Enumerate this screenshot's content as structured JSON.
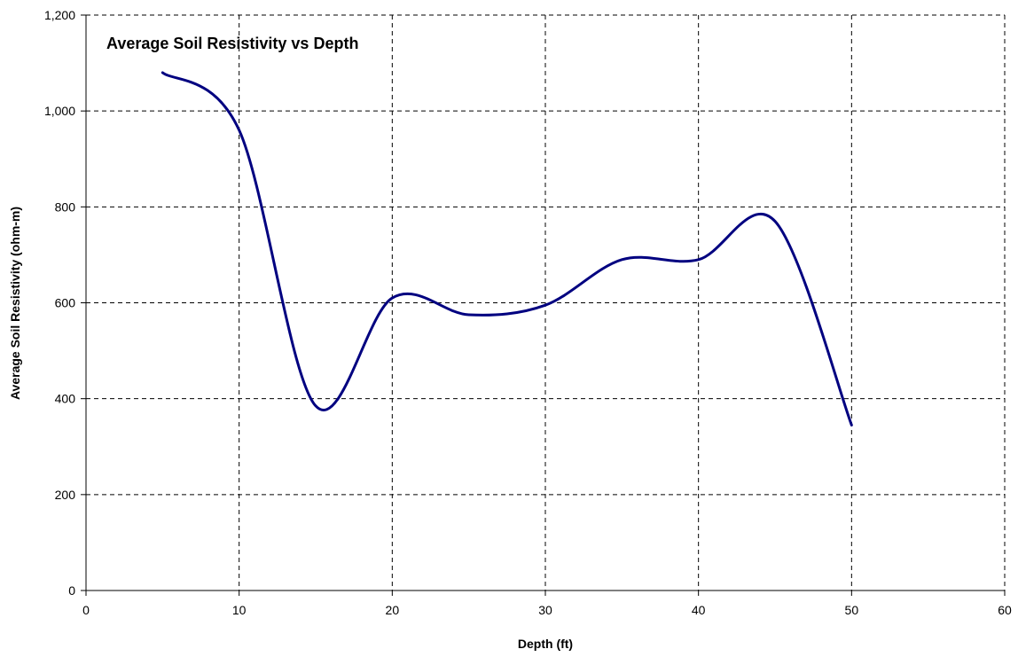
{
  "chart_data": {
    "type": "line",
    "title": "Average Soil Resistivity vs Depth",
    "xlabel": "Depth (ft)",
    "ylabel": "Average Soil Resistivity (ohm-m)",
    "xlim": [
      0,
      60
    ],
    "ylim": [
      0,
      1200
    ],
    "x_ticks": [
      0,
      10,
      20,
      30,
      40,
      50,
      60
    ],
    "x_tick_labels": [
      "0",
      "10",
      "20",
      "30",
      "40",
      "50",
      "60"
    ],
    "y_ticks": [
      0,
      200,
      400,
      600,
      800,
      1000,
      1200
    ],
    "y_tick_labels": [
      "0",
      "200",
      "400",
      "600",
      "800",
      "1,000",
      "1,200"
    ],
    "grid": true,
    "smooth": true,
    "series": [
      {
        "color": "#000080",
        "x": [
          5,
          10,
          15,
          20,
          25,
          30,
          35,
          40,
          45,
          50
        ],
        "y": [
          1080,
          960,
          385,
          610,
          575,
          595,
          690,
          690,
          770,
          345
        ]
      }
    ]
  }
}
